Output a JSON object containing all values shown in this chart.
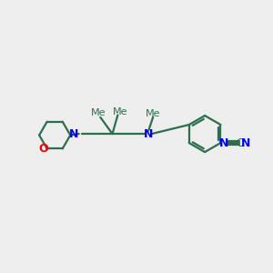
{
  "bg_color": "#eeeeee",
  "bond_color": "#2d6e4e",
  "N_color": "#0000ee",
  "O_color": "#ee0000",
  "line_width": 1.6,
  "font_size": 8.5,
  "fig_width": 3.0,
  "fig_height": 3.0,
  "dpi": 100,
  "xlim": [
    0,
    10
  ],
  "ylim": [
    0,
    10
  ]
}
